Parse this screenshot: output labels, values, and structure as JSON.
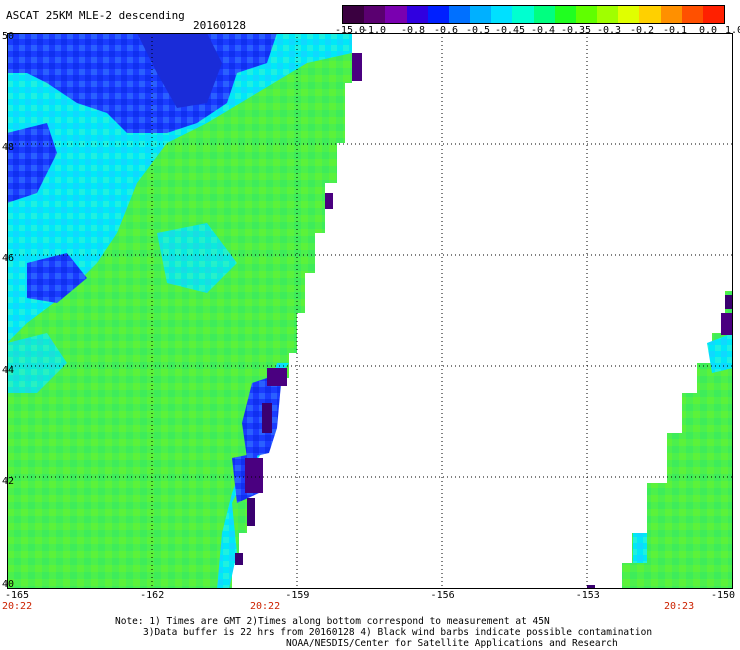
{
  "header": {
    "title": "ASCAT 25KM MLE-2 descending",
    "date": "20160128"
  },
  "colorbar": {
    "labels": [
      "-15.0",
      "-1.0",
      "-0.8",
      "-0.6",
      "-0.5",
      "-0.45",
      "-0.4",
      "-0.35",
      "-0.3",
      "-0.2",
      "-0.1",
      "0.0",
      "1.0"
    ],
    "colors": [
      "#3a0040",
      "#5a0070",
      "#7a00b0",
      "#3000e0",
      "#0020ff",
      "#0070ff",
      "#00b0ff",
      "#00e0ff",
      "#00ffd0",
      "#00ff80",
      "#20ff20",
      "#60ff00",
      "#a0ff00",
      "#e0ff00",
      "#ffd000",
      "#ff9000",
      "#ff5000",
      "#ff2000"
    ]
  },
  "map": {
    "lon_ticks": [
      "-165",
      "-162",
      "-159",
      "-156",
      "-153",
      "-150"
    ],
    "lat_ticks": [
      "50",
      "48",
      "46",
      "44",
      "42",
      "40"
    ],
    "lon_range": [
      -165,
      -150
    ],
    "lat_range": [
      40,
      50
    ],
    "grid": "dotted",
    "swath_colors": {
      "blue": "#1a3cff",
      "cyan": "#00e8f8",
      "green": "#4cf04c",
      "lightgreen": "#7cf43c",
      "purple": "#4a0080",
      "darkpurple": "#2a004a"
    }
  },
  "times": [
    "20:22",
    "20:22",
    "20:23"
  ],
  "notes": [
    "Note: 1) Times are GMT 2)Times along bottom correspond to measurement at 45N",
    "3)Data buffer is 22 hrs from 20160128 4) Black wind barbs indicate possible contamination",
    "NOAA/NESDIS/Center for Satellite Applications and Research"
  ]
}
